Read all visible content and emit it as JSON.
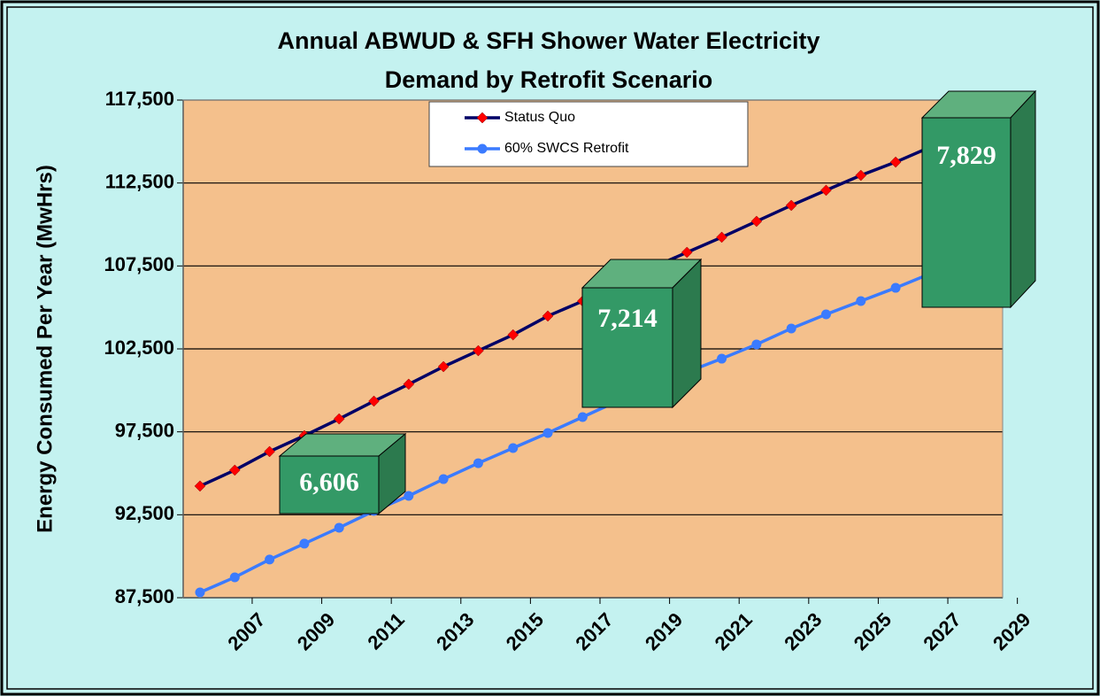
{
  "chart_data": {
    "type": "line",
    "title": [
      "Annual ABWUD & SFH Shower Water Electricity",
      "Demand by Retrofit Scenario"
    ],
    "y_label": "Energy Consumed Per Year (MwHrs)",
    "categories": [
      null,
      "2007",
      null,
      "2009",
      null,
      "2011",
      null,
      "2013",
      null,
      "2015",
      null,
      "2017",
      null,
      "2019",
      null,
      "2021",
      null,
      "2023",
      null,
      "2025",
      null,
      "2027",
      null,
      "2029"
    ],
    "series": [
      {
        "name": "Status Quo",
        "color": "#000066",
        "marker_color": "#ff0000",
        "marker": "diamond",
        "values": [
          94230,
          95190,
          96310,
          97270,
          98280,
          99350,
          100370,
          101430,
          102390,
          103350,
          104480,
          105380,
          106450,
          107400,
          108320,
          109230,
          110190,
          111150,
          112060,
          112960,
          113760,
          114670,
          115600,
          116500
        ]
      },
      {
        "name": "60% SWCS Retrofit",
        "color": "#3b7bff",
        "marker_color": "#3b7bff",
        "marker": "circle",
        "values": [
          87820,
          88730,
          89800,
          90760,
          91720,
          92730,
          93640,
          94650,
          95610,
          96520,
          97430,
          98390,
          99350,
          100190,
          101100,
          101910,
          102770,
          103730,
          104580,
          105380,
          106180,
          107040,
          107900,
          108700
        ]
      }
    ],
    "annotations": [
      "6,606",
      "7,214",
      "7,829"
    ],
    "ylim": [
      87500,
      117500
    ],
    "yticks": [
      {
        "value": 87500,
        "label": "87,500"
      },
      {
        "value": 92500,
        "label": "92,500"
      },
      {
        "value": 97500,
        "label": "97,500"
      },
      {
        "value": 102500,
        "label": "102,500"
      },
      {
        "value": 107500,
        "label": "107,500"
      },
      {
        "value": 112500,
        "label": "112,500"
      },
      {
        "value": 117500,
        "label": "117,500"
      }
    ],
    "grid": true,
    "legend": "top"
  }
}
